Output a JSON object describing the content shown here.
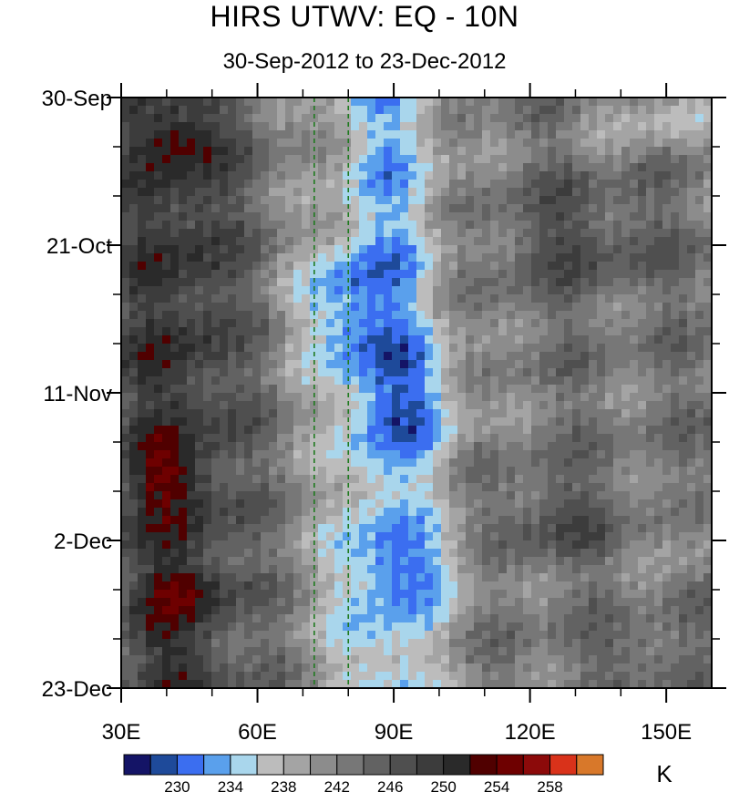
{
  "chart_data": {
    "type": "heatmap",
    "title": "HIRS UTWV: EQ - 10N",
    "subtitle": "30-Sep-2012 to 23-Dec-2012",
    "x_axis": {
      "range": [
        30,
        160
      ],
      "ticks": [
        30,
        60,
        90,
        120,
        150
      ],
      "tick_labels": [
        "30E",
        "60E",
        "90E",
        "120E",
        "150E"
      ]
    },
    "y_axis": {
      "range": [
        "2012-09-30",
        "2012-12-23"
      ],
      "ticks": [
        "2012-09-30",
        "2012-10-21",
        "2012-11-11",
        "2012-12-02",
        "2012-12-23"
      ],
      "tick_labels": [
        "30-Sep",
        "21-Oct",
        "11-Nov",
        "2-Dec",
        "23-Dec"
      ],
      "direction": "time increases downward"
    },
    "reference_lines": [
      {
        "style": "dashed",
        "color": "#1f7a1f",
        "x": 72.5
      },
      {
        "style": "dashed",
        "color": "#1f7a1f",
        "x": 80
      }
    ],
    "colorbar": {
      "unit": "K",
      "levels": [
        228,
        230,
        232,
        234,
        236,
        238,
        240,
        242,
        244,
        246,
        248,
        250,
        252,
        254,
        256,
        258,
        260
      ],
      "tick_labels": [
        "230",
        "234",
        "238",
        "242",
        "246",
        "250",
        "254",
        "258"
      ],
      "colors": [
        "#141466",
        "#1e4a9a",
        "#3b6ef0",
        "#5aa0ec",
        "#a9d6ec",
        "#bcbcbc",
        "#a4a4a4",
        "#8c8c8c",
        "#777777",
        "#626262",
        "#4f4f4f",
        "#3c3c3c",
        "#2a2a2a",
        "#500000",
        "#6e0000",
        "#8c0a0a",
        "#d9321a",
        "#d8782a"
      ]
    },
    "field_description_values": {
      "west_30E_60E": "dry band, mostly 244-252 K with embedded 254-258 K maxima",
      "central_70E_100E": "moist zone, 230-240 K",
      "east_100E_160E": "alternating 236-250 K bands"
    }
  }
}
